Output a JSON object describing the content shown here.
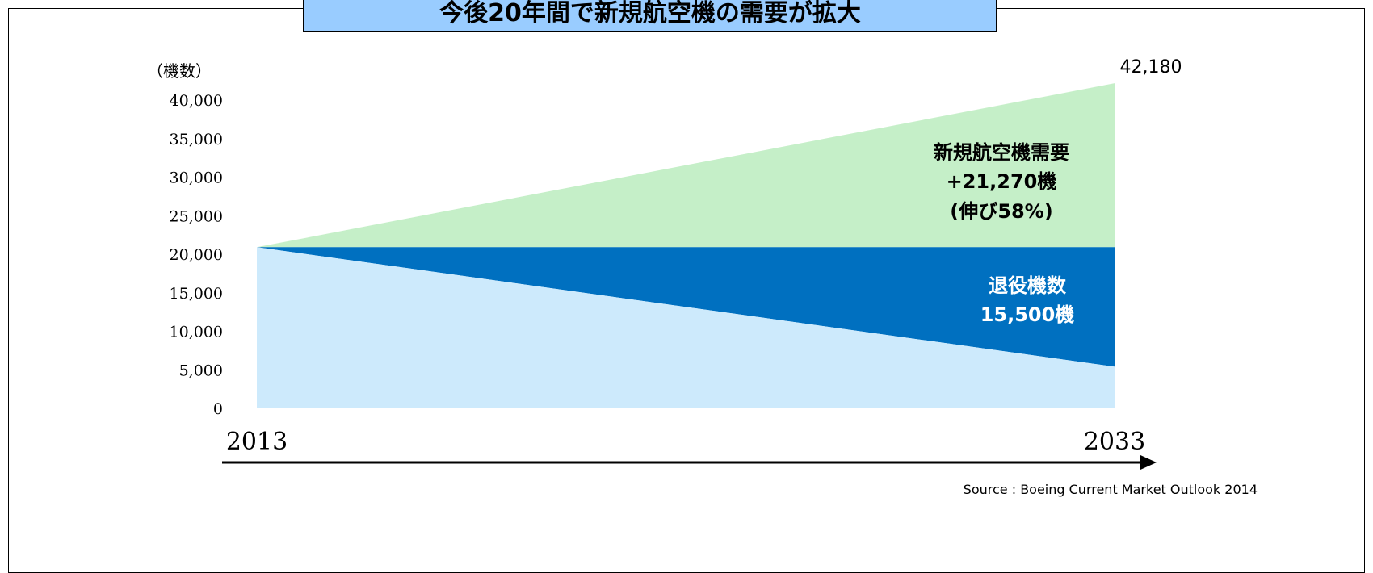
{
  "title": "今後20年間で新規航空機の需要が拡大",
  "colors": {
    "title_bg": "#99ccff",
    "new_demand": "#c5efc8",
    "retired": "#0070c0",
    "remaining": "#cdeafc"
  },
  "chart_data": {
    "type": "area",
    "unit_label": "（機数）",
    "x": [
      "2013",
      "2033"
    ],
    "ylim": [
      0,
      40000
    ],
    "yticks": [
      "0",
      "5,000",
      "10,000",
      "15,000",
      "20,000",
      "25,000",
      "30,000",
      "35,000",
      "40,000"
    ],
    "series": [
      {
        "values": [
          20910,
          5410
        ]
      },
      {
        "values": [
          0,
          15500
        ]
      },
      {
        "values": [
          0,
          21270
        ]
      }
    ],
    "end_value_label": "42,180",
    "annotations": {
      "new_demand": [
        "新規航空機需要",
        "+21,270機",
        "(伸び58%)"
      ],
      "retired": [
        "退役機数",
        "15,500機"
      ]
    }
  },
  "source": "Source : Boeing Current Market Outlook 2014"
}
